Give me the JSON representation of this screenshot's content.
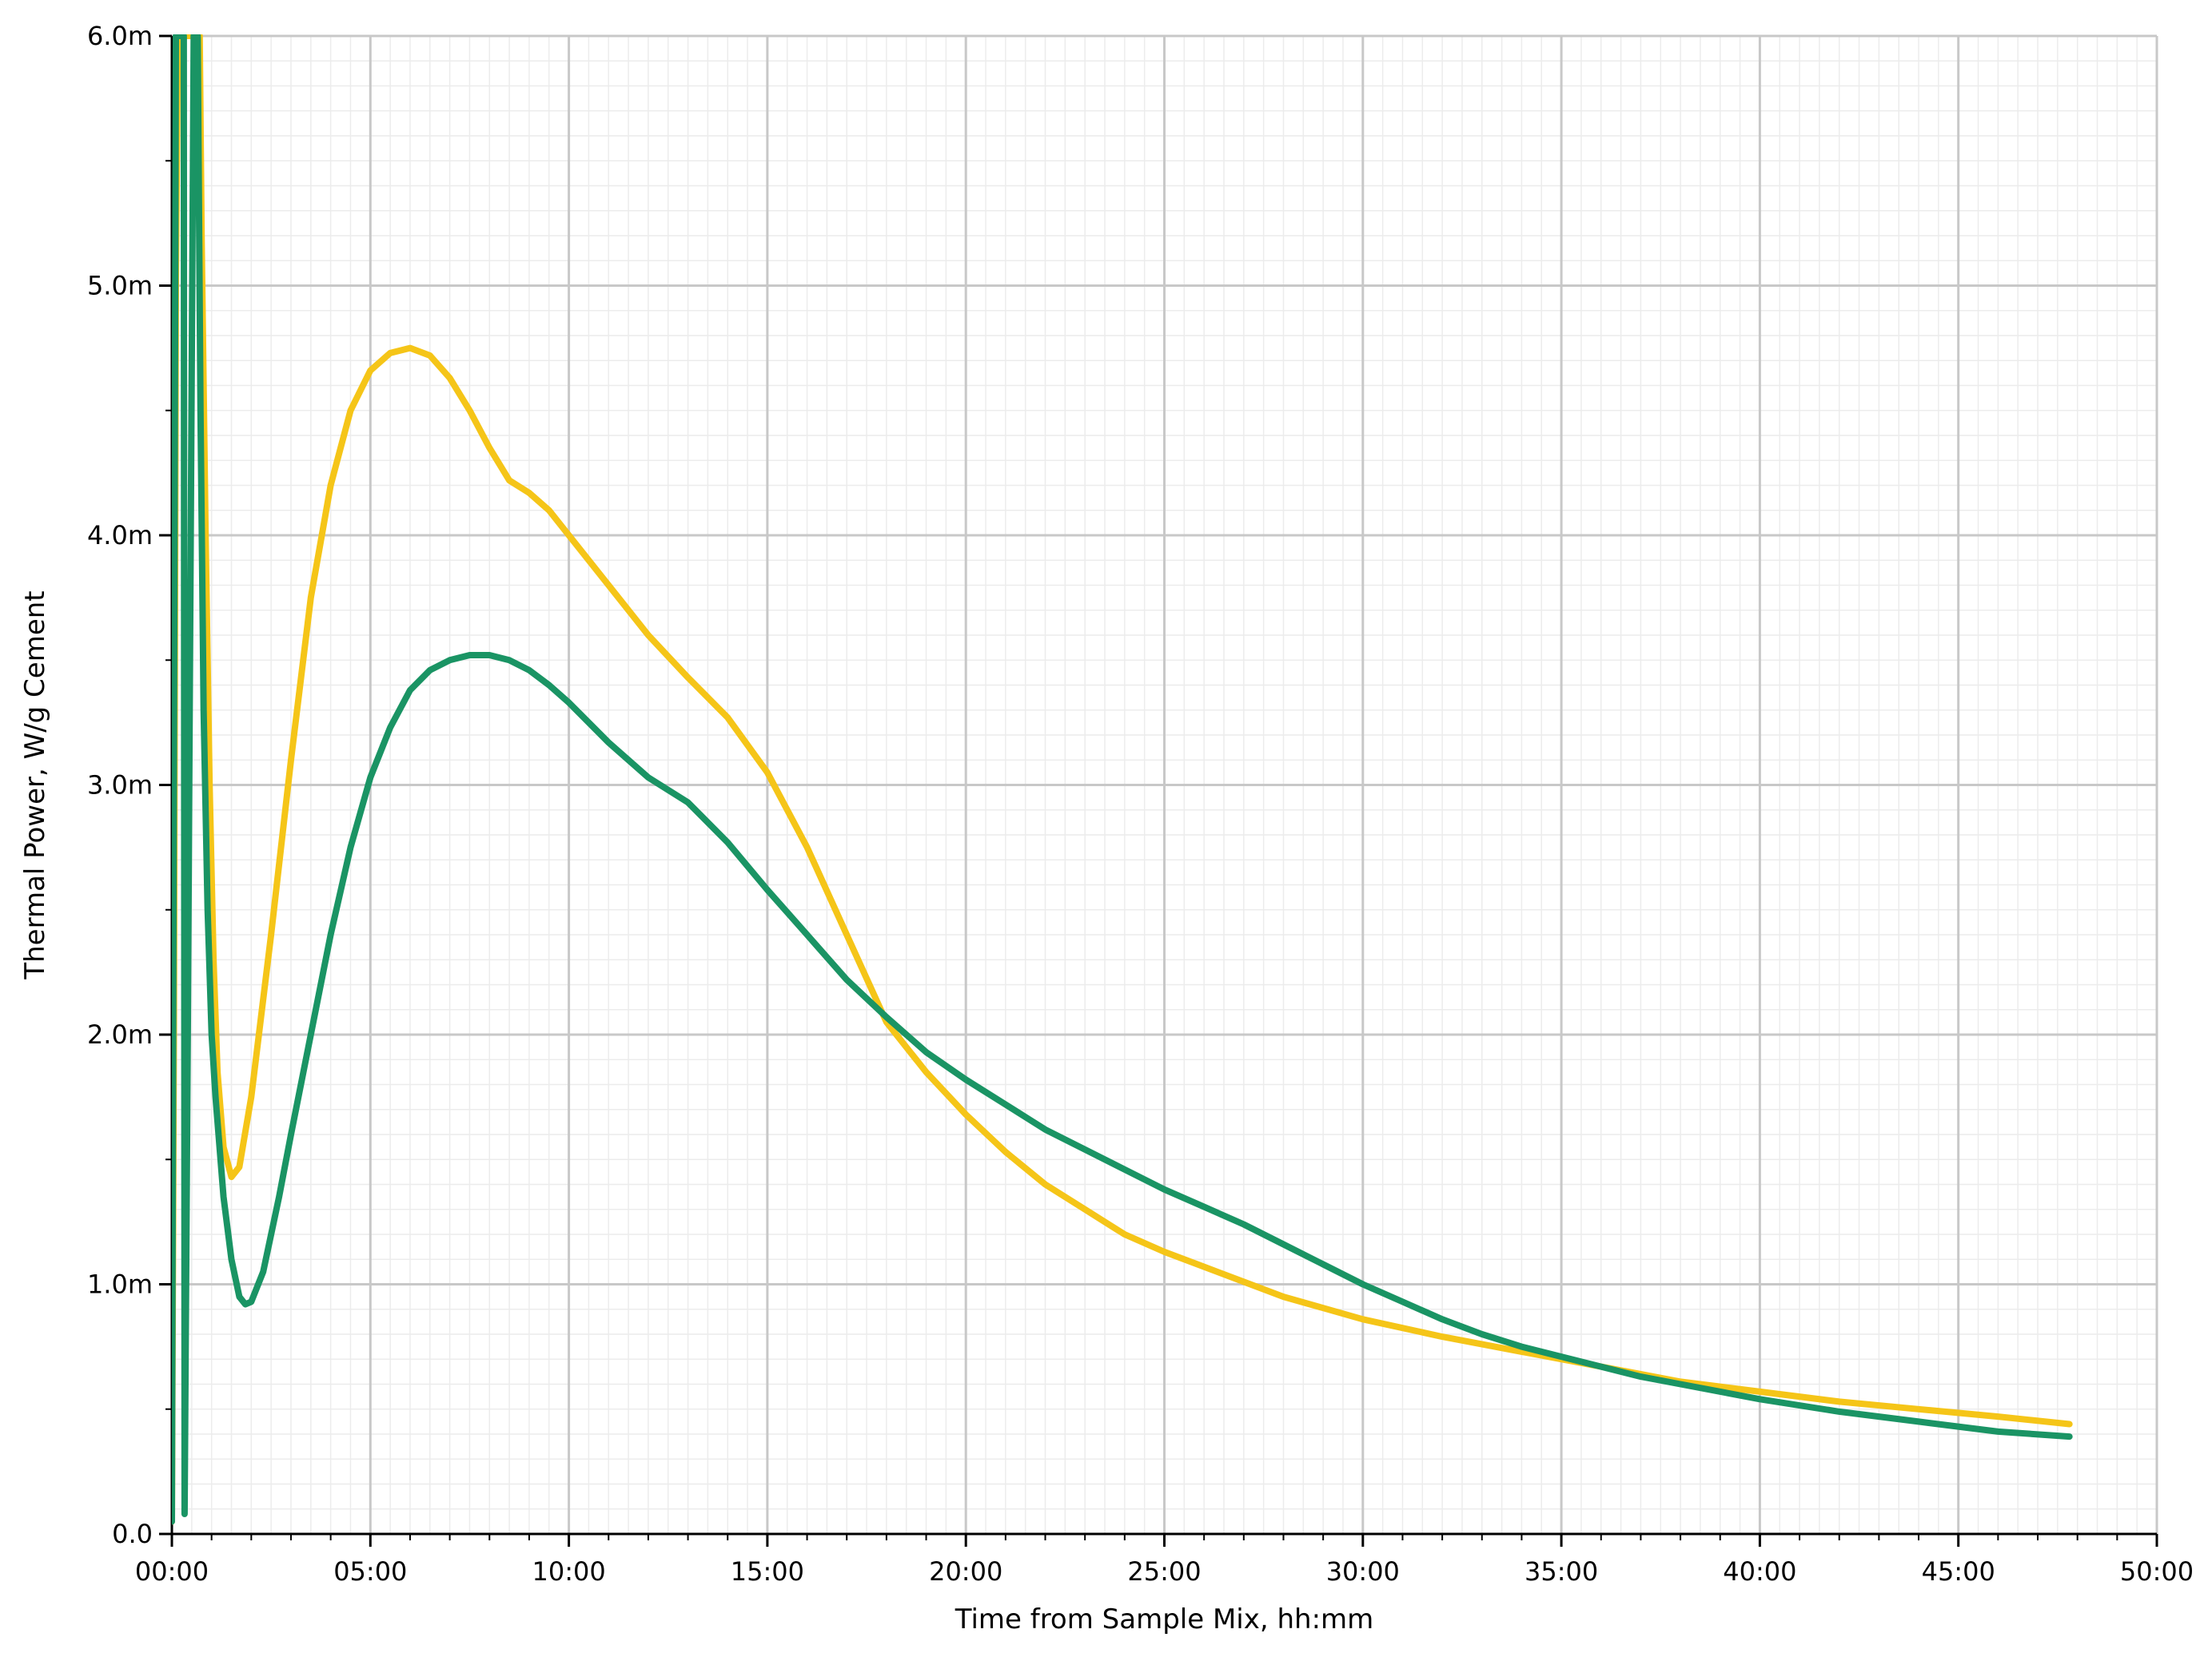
{
  "chart_data": {
    "type": "line",
    "title": "",
    "xlabel": "Time from Sample Mix, hh:mm",
    "ylabel": "Thermal Power, W/g Cement",
    "xlim": [
      0,
      50
    ],
    "ylim": [
      0,
      6
    ],
    "grid": true,
    "minor_grid": true,
    "legend": "none",
    "x_ticks": [
      {
        "value": 0,
        "label": "00:00"
      },
      {
        "value": 5,
        "label": "05:00"
      },
      {
        "value": 10,
        "label": "10:00"
      },
      {
        "value": 15,
        "label": "15:00"
      },
      {
        "value": 20,
        "label": "20:00"
      },
      {
        "value": 25,
        "label": "25:00"
      },
      {
        "value": 30,
        "label": "30:00"
      },
      {
        "value": 35,
        "label": "35:00"
      },
      {
        "value": 40,
        "label": "40:00"
      },
      {
        "value": 45,
        "label": "45:00"
      },
      {
        "value": 50,
        "label": "50:00"
      }
    ],
    "y_ticks": [
      {
        "value": 0,
        "label": "0.0"
      },
      {
        "value": 1,
        "label": "1.0m"
      },
      {
        "value": 2,
        "label": "2.0m"
      },
      {
        "value": 3,
        "label": "3.0m"
      },
      {
        "value": 4,
        "label": "4.0m"
      },
      {
        "value": 5,
        "label": "5.0m"
      },
      {
        "value": 6,
        "label": "6.0m"
      }
    ],
    "series": [
      {
        "color": "#f5c518",
        "points": [
          [
            0.0,
            0.05
          ],
          [
            0.05,
            2.0
          ],
          [
            0.1,
            5.0
          ],
          [
            0.15,
            6.0
          ],
          [
            0.7,
            6.0
          ],
          [
            0.75,
            5.2
          ],
          [
            0.85,
            4.0
          ],
          [
            0.95,
            3.0
          ],
          [
            1.05,
            2.3
          ],
          [
            1.15,
            1.85
          ],
          [
            1.3,
            1.55
          ],
          [
            1.5,
            1.43
          ],
          [
            1.7,
            1.47
          ],
          [
            2.0,
            1.75
          ],
          [
            2.5,
            2.4
          ],
          [
            3.0,
            3.1
          ],
          [
            3.5,
            3.75
          ],
          [
            4.0,
            4.2
          ],
          [
            4.5,
            4.5
          ],
          [
            5.0,
            4.66
          ],
          [
            5.5,
            4.73
          ],
          [
            6.0,
            4.75
          ],
          [
            6.5,
            4.72
          ],
          [
            7.0,
            4.63
          ],
          [
            7.5,
            4.5
          ],
          [
            8.0,
            4.35
          ],
          [
            8.5,
            4.22
          ],
          [
            9.0,
            4.17
          ],
          [
            9.5,
            4.1
          ],
          [
            10.0,
            4.0
          ],
          [
            11.0,
            3.8
          ],
          [
            12.0,
            3.6
          ],
          [
            13.0,
            3.43
          ],
          [
            14.0,
            3.27
          ],
          [
            15.0,
            3.05
          ],
          [
            16.0,
            2.75
          ],
          [
            17.0,
            2.4
          ],
          [
            18.0,
            2.05
          ],
          [
            19.0,
            1.85
          ],
          [
            20.0,
            1.68
          ],
          [
            21.0,
            1.53
          ],
          [
            22.0,
            1.4
          ],
          [
            23.0,
            1.3
          ],
          [
            24.0,
            1.2
          ],
          [
            25.0,
            1.13
          ],
          [
            26.0,
            1.07
          ],
          [
            27.0,
            1.01
          ],
          [
            28.0,
            0.95
          ],
          [
            30.0,
            0.86
          ],
          [
            32.0,
            0.79
          ],
          [
            34.0,
            0.73
          ],
          [
            36.0,
            0.67
          ],
          [
            38.0,
            0.61
          ],
          [
            40.0,
            0.57
          ],
          [
            42.0,
            0.53
          ],
          [
            44.0,
            0.5
          ],
          [
            46.0,
            0.47
          ],
          [
            47.8,
            0.44
          ]
        ]
      },
      {
        "color": "#1a9464",
        "points": [
          [
            0.0,
            0.05
          ],
          [
            0.1,
            6.0
          ],
          [
            0.3,
            6.0
          ],
          [
            0.32,
            0.08
          ],
          [
            0.4,
            2.0
          ],
          [
            0.55,
            6.0
          ],
          [
            0.65,
            6.0
          ],
          [
            0.72,
            4.5
          ],
          [
            0.8,
            3.3
          ],
          [
            0.9,
            2.5
          ],
          [
            1.0,
            2.0
          ],
          [
            1.1,
            1.75
          ],
          [
            1.3,
            1.35
          ],
          [
            1.5,
            1.1
          ],
          [
            1.7,
            0.95
          ],
          [
            1.85,
            0.92
          ],
          [
            2.0,
            0.93
          ],
          [
            2.3,
            1.05
          ],
          [
            2.7,
            1.35
          ],
          [
            3.0,
            1.6
          ],
          [
            3.5,
            2.0
          ],
          [
            4.0,
            2.4
          ],
          [
            4.5,
            2.75
          ],
          [
            5.0,
            3.03
          ],
          [
            5.5,
            3.23
          ],
          [
            6.0,
            3.38
          ],
          [
            6.5,
            3.46
          ],
          [
            7.0,
            3.5
          ],
          [
            7.5,
            3.52
          ],
          [
            8.0,
            3.52
          ],
          [
            8.5,
            3.5
          ],
          [
            9.0,
            3.46
          ],
          [
            9.5,
            3.4
          ],
          [
            10.0,
            3.33
          ],
          [
            11.0,
            3.17
          ],
          [
            12.0,
            3.03
          ],
          [
            13.0,
            2.93
          ],
          [
            14.0,
            2.77
          ],
          [
            15.0,
            2.58
          ],
          [
            16.0,
            2.4
          ],
          [
            17.0,
            2.22
          ],
          [
            18.0,
            2.07
          ],
          [
            19.0,
            1.93
          ],
          [
            20.0,
            1.82
          ],
          [
            21.0,
            1.72
          ],
          [
            22.0,
            1.62
          ],
          [
            23.0,
            1.54
          ],
          [
            24.0,
            1.46
          ],
          [
            25.0,
            1.38
          ],
          [
            26.0,
            1.31
          ],
          [
            27.0,
            1.24
          ],
          [
            28.0,
            1.16
          ],
          [
            29.0,
            1.08
          ],
          [
            30.0,
            1.0
          ],
          [
            31.0,
            0.93
          ],
          [
            32.0,
            0.86
          ],
          [
            33.0,
            0.8
          ],
          [
            34.0,
            0.75
          ],
          [
            35.0,
            0.71
          ],
          [
            36.0,
            0.67
          ],
          [
            37.0,
            0.63
          ],
          [
            38.0,
            0.6
          ],
          [
            40.0,
            0.54
          ],
          [
            42.0,
            0.49
          ],
          [
            44.0,
            0.45
          ],
          [
            46.0,
            0.41
          ],
          [
            47.8,
            0.39
          ]
        ]
      }
    ]
  }
}
